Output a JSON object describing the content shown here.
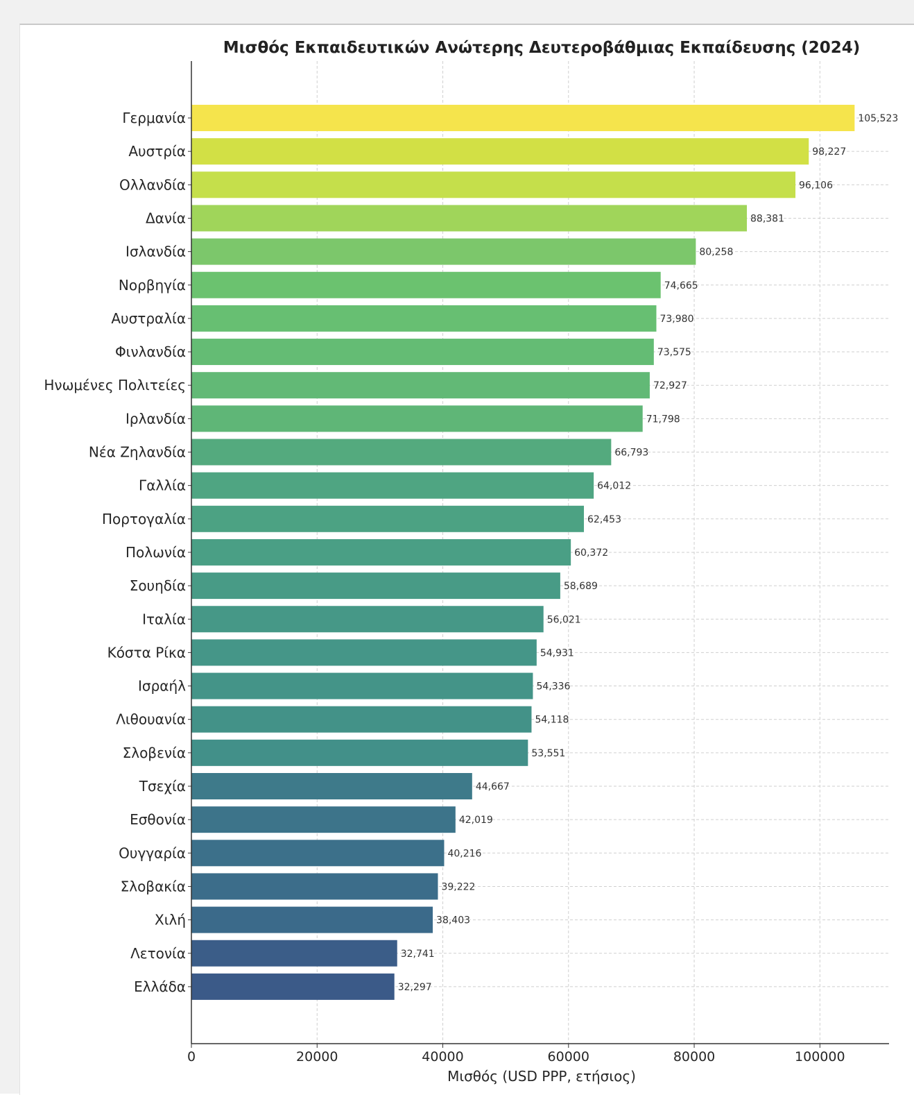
{
  "chart_data": {
    "type": "bar",
    "orientation": "horizontal",
    "title": "Μισθός Εκπαιδευτικών Ανώτερης Δευτεροβάθμιας Εκπαίδευσης (2024)",
    "xlabel": "Μισθός (USD PPP, ετήσιος)",
    "ylabel": "",
    "xlim": [
      0,
      111000
    ],
    "xticks": [
      0,
      20000,
      40000,
      60000,
      80000,
      100000
    ],
    "xtick_labels": [
      "0",
      "20000",
      "40000",
      "60000",
      "80000",
      "100000"
    ],
    "grid": true,
    "colormap": "viridis",
    "categories": [
      "Γερμανία",
      "Αυστρία",
      "Ολλανδία",
      "Δανία",
      "Ισλανδία",
      "Νορβηγία",
      "Αυστραλία",
      "Φινλανδία",
      "Ηνωμένες Πολιτείες",
      "Ιρλανδία",
      "Νέα Ζηλανδία",
      "Γαλλία",
      "Πορτογαλία",
      "Πολωνία",
      "Σουηδία",
      "Ιταλία",
      "Κόστα Ρίκα",
      "Ισραήλ",
      "Λιθουανία",
      "Σλοβενία",
      "Τσεχία",
      "Εσθονία",
      "Ουγγαρία",
      "Σλοβακία",
      "Χιλή",
      "Λετονία",
      "Ελλάδα"
    ],
    "values": [
      105523,
      98227,
      96106,
      88381,
      80258,
      74665,
      73980,
      73575,
      72927,
      71798,
      66793,
      64012,
      62453,
      60372,
      58689,
      56021,
      54931,
      54336,
      54118,
      53551,
      44667,
      42019,
      40216,
      39222,
      38403,
      32741,
      32297
    ],
    "value_labels": [
      "105,523",
      "98,227",
      "96,106",
      "88,381",
      "80,258",
      "74,665",
      "73,980",
      "73,575",
      "72,927",
      "71,798",
      "66,793",
      "64,012",
      "62,453",
      "60,372",
      "58,689",
      "56,021",
      "54,931",
      "54,336",
      "54,118",
      "53,551",
      "44,667",
      "42,019",
      "40,216",
      "39,222",
      "38,403",
      "32,741",
      "32,297"
    ],
    "colors": [
      "#f5e44c",
      "#d2e045",
      "#c5df4b",
      "#a0d55a",
      "#7cc76b",
      "#6bc26f",
      "#67bf72",
      "#64bc74",
      "#62b976",
      "#5fb677",
      "#54aa7e",
      "#4fa582",
      "#4ca283",
      "#4a9f85",
      "#489b86",
      "#469887",
      "#459688",
      "#449488",
      "#439288",
      "#429089",
      "#3e7a8a",
      "#3d748a",
      "#3c708a",
      "#3c6d8a",
      "#3b6a8a",
      "#3b5d88",
      "#3b5a88"
    ]
  }
}
